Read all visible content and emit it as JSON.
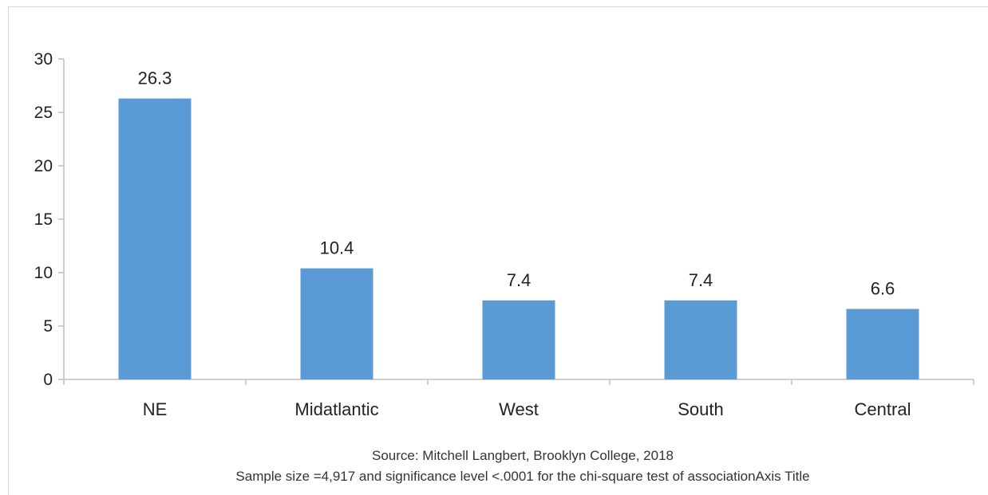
{
  "chart_data": {
    "type": "bar",
    "categories": [
      "NE",
      "Midatlantic",
      "West",
      "South",
      "Central"
    ],
    "values": [
      26.3,
      10.4,
      7.4,
      7.4,
      6.6
    ],
    "data_labels": [
      "26.3",
      "10.4",
      "7.4",
      "7.4",
      "6.6"
    ],
    "title": "",
    "xlabel": "",
    "ylabel": "",
    "ylim": [
      0,
      30
    ],
    "yticks": [
      0,
      5,
      10,
      15,
      20,
      25,
      30
    ],
    "grid": false,
    "legend": "none",
    "bar_color": "#5b9bd5",
    "captions": [
      "Source: Mitchell Langbert, Brooklyn College, 2018",
      "Sample size =4,917 and significance level <.0001 for the chi-square test of associationAxis Title"
    ]
  }
}
